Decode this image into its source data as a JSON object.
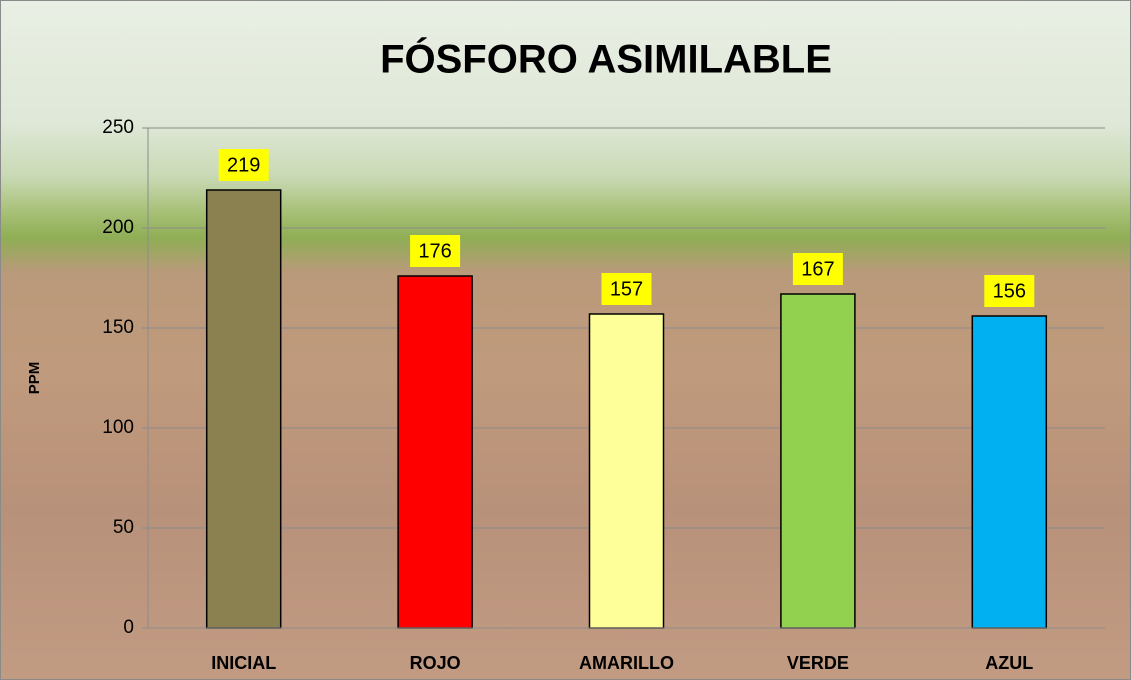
{
  "chart_data": {
    "type": "bar",
    "title": "FÓSFORO ASIMILABLE",
    "y_label": "PPM",
    "categories": [
      "INICIAL",
      "ROJO",
      "AMARILLO",
      "VERDE",
      "AZUL"
    ],
    "values": [
      219,
      176,
      157,
      167,
      156
    ],
    "colors": [
      "#8b8050",
      "#ff0000",
      "#ffff99",
      "#92d050",
      "#00b0f0"
    ],
    "label_box_color": "#ffff00",
    "ylim": [
      0,
      250
    ],
    "yticks": [
      0,
      50,
      100,
      150,
      200,
      250
    ],
    "grid": true
  }
}
